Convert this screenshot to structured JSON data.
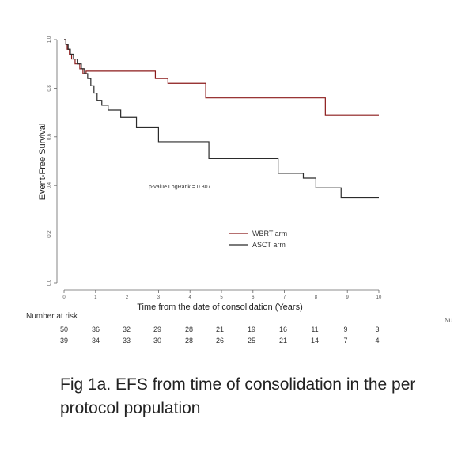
{
  "chart_data": {
    "type": "line",
    "step": true,
    "title": "",
    "xlabel": "Time from the date of consolidation (Years)",
    "ylabel": "Event-Free Survival",
    "xlim": [
      0,
      10
    ],
    "ylim": [
      0,
      1
    ],
    "x_ticks": [
      "0",
      "1",
      "2",
      "3",
      "4",
      "5",
      "6",
      "7",
      "8",
      "9",
      "10"
    ],
    "y_ticks": [
      "0.0",
      "0.2",
      "0.4",
      "0.6",
      "0.8",
      "1.0"
    ],
    "annotation": "p-value LogRank = 0.307",
    "legend_position": "center-right",
    "grid": false,
    "series": [
      {
        "name": "WBRT arm",
        "color": "#8b1a1a",
        "x": [
          0,
          0.06,
          0.1,
          0.17,
          0.24,
          0.35,
          0.5,
          0.6,
          0.7,
          2.9,
          3.3,
          4.5,
          8.3,
          10
        ],
        "y": [
          1.0,
          0.98,
          0.96,
          0.94,
          0.92,
          0.9,
          0.88,
          0.86,
          0.87,
          0.84,
          0.82,
          0.76,
          0.69,
          0.69
        ]
      },
      {
        "name": "ASCT arm",
        "color": "#2b2b2b",
        "x": [
          0,
          0.06,
          0.13,
          0.2,
          0.3,
          0.42,
          0.55,
          0.65,
          0.75,
          0.85,
          0.95,
          1.05,
          1.2,
          1.4,
          1.8,
          2.3,
          3.0,
          4.6,
          6.8,
          7.6,
          8.0,
          8.8,
          10
        ],
        "y": [
          1.0,
          0.98,
          0.96,
          0.94,
          0.92,
          0.9,
          0.88,
          0.86,
          0.84,
          0.81,
          0.78,
          0.75,
          0.73,
          0.71,
          0.68,
          0.64,
          0.58,
          0.51,
          0.45,
          0.43,
          0.39,
          0.35,
          0.35
        ]
      }
    ]
  },
  "risk_table": {
    "title": "Number at risk",
    "rows": [
      [
        "50",
        "36",
        "32",
        "29",
        "28",
        "21",
        "19",
        "16",
        "11",
        "9",
        "3"
      ],
      [
        "39",
        "34",
        "33",
        "30",
        "28",
        "26",
        "25",
        "21",
        "14",
        "7",
        "4"
      ]
    ]
  },
  "stray_text": "Nu",
  "caption": "Fig 1a. EFS from time of consolidation in the per protocol population"
}
